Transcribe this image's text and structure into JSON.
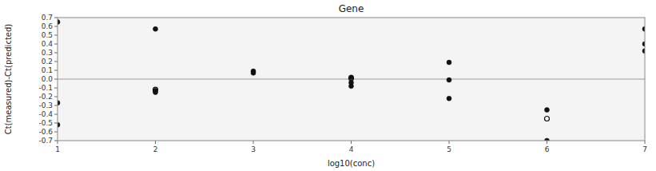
{
  "chart_data": {
    "type": "scatter",
    "title": "Gene",
    "x_label": "log10(conc)",
    "y_label": "Ct(measured)-Ct(predicted)",
    "xlim": [
      1,
      7
    ],
    "ylim": [
      -0.7,
      0.7
    ],
    "xticks": [
      1,
      2,
      3,
      4,
      5,
      6,
      7
    ],
    "yticks": [
      -0.7,
      -0.6,
      -0.5,
      -0.4,
      -0.3,
      -0.2,
      -0.1,
      {
        "value": 0,
        "label": "0.0"
      },
      0.1,
      0.2,
      0.3,
      0.4,
      0.5,
      0.6,
      0.7
    ],
    "grid": false,
    "reference_lines": [
      {
        "value": 0.0,
        "color": "#999999"
      }
    ],
    "series": [
      {
        "marker": "circle",
        "color": "#111111",
        "x": [
          1,
          1,
          1,
          2,
          2,
          2,
          3,
          3,
          4,
          4,
          4,
          5,
          5,
          5,
          6,
          6,
          7,
          7,
          7
        ],
        "values": [
          0.65,
          -0.27,
          -0.52,
          0.57,
          -0.13,
          -0.15,
          0.09,
          0.07,
          0.02,
          -0.04,
          -0.08,
          0.19,
          -0.01,
          -0.22,
          -0.35,
          -0.7,
          0.57,
          0.4,
          0.32
        ]
      },
      {
        "marker": "hollow",
        "color": "#111111",
        "x": [
          2,
          4,
          6
        ],
        "values": [
          -0.12,
          0.01,
          -0.45
        ]
      }
    ]
  }
}
